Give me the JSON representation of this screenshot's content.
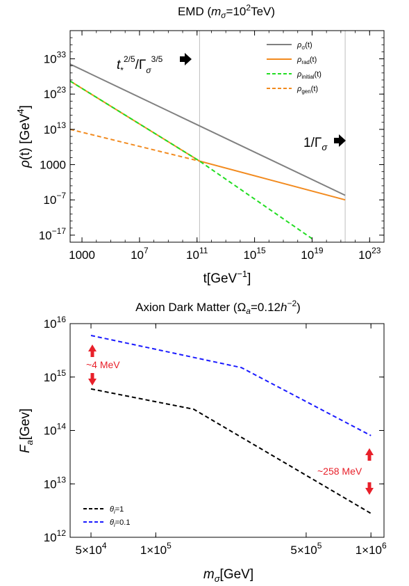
{
  "chart_data": [
    {
      "type": "line",
      "title": "EMD (mσ=10²TeV)",
      "xlabel": "t[GeV⁻¹]",
      "ylabel": "ρ(t) [GeV⁴]",
      "xscale": "log",
      "yscale": "log",
      "xlim": [
        150,
        1e+24
      ],
      "ylim": [
        1e-19,
        1e+41
      ],
      "xticks": [
        {
          "v": 1000,
          "label": "1000"
        },
        {
          "v": 10000000.0,
          "label": "10⁷"
        },
        {
          "v": 100000000000.0,
          "label": "10¹¹"
        },
        {
          "v": 1000000000000000.0,
          "label": "10¹⁵"
        },
        {
          "v": 1e+19,
          "label": "10¹⁹"
        },
        {
          "v": 1e+23,
          "label": "10²³"
        }
      ],
      "yticks": [
        {
          "v": 1e+33,
          "label": "10³³"
        },
        {
          "v": 1e+23,
          "label": "10²³"
        },
        {
          "v": 10000000000000.0,
          "label": "10¹³"
        },
        {
          "v": 1000,
          "label": "1000"
        },
        {
          "v": 1e-07,
          "label": "10⁻⁷"
        },
        {
          "v": 1e-17,
          "label": "10⁻¹⁷"
        }
      ],
      "vlines": [
        150000000000.0,
        2e+21
      ],
      "annotations": [
        {
          "text": "t*^(2/5)/Γσ^(3/5)",
          "x": 100000000000.0
        },
        {
          "text": "1/Γσ",
          "x": 1e+21
        }
      ],
      "grid": false,
      "legend_position": "top-right",
      "series": [
        {
          "name": "ρσ(t)",
          "color": "#808080",
          "dash": "solid",
          "x": [
            150,
            2e+21
          ],
          "y": [
            3e+31,
            2e-06
          ]
        },
        {
          "name": "ρrad(t)",
          "color": "#f28a1e",
          "dash": "solid",
          "x": [
            150,
            150000000000.0,
            2e+21
          ],
          "y": [
            5e+26,
            10000.0,
            1e-07
          ]
        },
        {
          "name": "ρinitial(t)",
          "color": "#22dd22",
          "dash": "dashed",
          "x": [
            150,
            150000000000.0,
            1e+19
          ],
          "y": [
            5e+26,
            10000.0,
            1e-18
          ]
        },
        {
          "name": "ρgen(t)",
          "color": "#f28a1e",
          "dash": "dashed",
          "x": [
            150,
            150000000000.0
          ],
          "y": [
            10000000000000.0,
            10000.0
          ]
        }
      ]
    },
    {
      "type": "line",
      "title": "Axion Dark Matter (Ωa=0.12h⁻²)",
      "xlabel": "mσ[GeV]",
      "ylabel": "Fa[Gev]",
      "xscale": "log",
      "yscale": "log",
      "xlim": [
        40000,
        1150000
      ],
      "ylim": [
        1000000000000.0,
        1e+16
      ],
      "xticks": [
        {
          "v": 50000,
          "label": "5×10⁴"
        },
        {
          "v": 100000,
          "label": "1×10⁵"
        },
        {
          "v": 500000,
          "label": "5×10⁵"
        },
        {
          "v": 1000000,
          "label": "1×10⁶"
        }
      ],
      "yticks": [
        {
          "v": 1e+16,
          "label": "10¹⁶"
        },
        {
          "v": 1000000000000000.0,
          "label": "10¹⁵"
        },
        {
          "v": 100000000000000.0,
          "label": "10¹⁴"
        },
        {
          "v": 10000000000000.0,
          "label": "10¹³"
        },
        {
          "v": 1000000000000.0,
          "label": "10¹²"
        }
      ],
      "grid": false,
      "legend_position": "bottom-left",
      "annotations": [
        {
          "text": "~4 MeV",
          "x": 50000
        },
        {
          "text": "~258 MeV",
          "x": 1000000
        }
      ],
      "series": [
        {
          "name": "θi=1",
          "color": "#000000",
          "dash": "dashed",
          "x": [
            50000,
            150000,
            1000000
          ],
          "y": [
            600000000000000.0,
            250000000000000.0,
            2800000000000.0
          ]
        },
        {
          "name": "θi=0.1",
          "color": "#1a1aff",
          "dash": "dashed",
          "x": [
            50000,
            250000,
            1000000
          ],
          "y": [
            6000000000000000.0,
            1500000000000000.0,
            80000000000000.0
          ]
        }
      ]
    }
  ]
}
